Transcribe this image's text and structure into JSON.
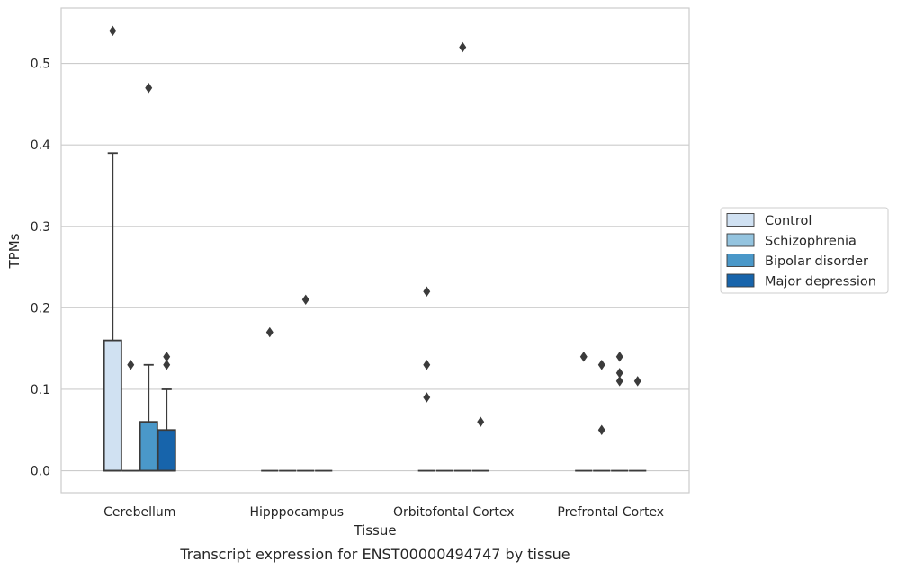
{
  "chart_data": {
    "type": "box",
    "caption": "Transcript expression for ENST00000494747 by tissue",
    "xlabel": "Tissue",
    "ylabel": "TPMs",
    "ylim": [
      -0.027,
      0.568
    ],
    "yticks": [
      0.0,
      0.1,
      0.2,
      0.3,
      0.4,
      0.5
    ],
    "ytick_labels": [
      "0.0",
      "0.1",
      "0.2",
      "0.3",
      "0.4",
      "0.5"
    ],
    "grid": "horizontal",
    "legend_position": "right",
    "categories": [
      "Cerebellum",
      "Hipppocampus",
      "Orbitofontal Cortex",
      "Prefrontal Cortex"
    ],
    "series": [
      {
        "name": "Control",
        "color": "#d0e1f2",
        "boxes": [
          {
            "q1": 0.0,
            "median": 0.0,
            "q3": 0.16,
            "whisker_low": 0.0,
            "whisker_high": 0.39,
            "outliers": [
              0.54
            ]
          },
          {
            "q1": 0.0,
            "median": 0.0,
            "q3": 0.0,
            "whisker_low": 0.0,
            "whisker_high": 0.0,
            "outliers": [
              0.17
            ]
          },
          {
            "q1": 0.0,
            "median": 0.0,
            "q3": 0.0,
            "whisker_low": 0.0,
            "whisker_high": 0.0,
            "outliers": [
              0.22,
              0.13,
              0.09
            ]
          },
          {
            "q1": 0.0,
            "median": 0.0,
            "q3": 0.0,
            "whisker_low": 0.0,
            "whisker_high": 0.0,
            "outliers": [
              0.14
            ]
          }
        ]
      },
      {
        "name": "Schizophrenia",
        "color": "#94c4df",
        "boxes": [
          {
            "q1": 0.0,
            "median": 0.0,
            "q3": 0.0,
            "whisker_low": 0.0,
            "whisker_high": 0.0,
            "outliers": [
              0.13
            ]
          },
          {
            "q1": 0.0,
            "median": 0.0,
            "q3": 0.0,
            "whisker_low": 0.0,
            "whisker_high": 0.0,
            "outliers": []
          },
          {
            "q1": 0.0,
            "median": 0.0,
            "q3": 0.0,
            "whisker_low": 0.0,
            "whisker_high": 0.0,
            "outliers": []
          },
          {
            "q1": 0.0,
            "median": 0.0,
            "q3": 0.0,
            "whisker_low": 0.0,
            "whisker_high": 0.0,
            "outliers": [
              0.13,
              0.05
            ]
          }
        ]
      },
      {
        "name": "Bipolar disorder",
        "color": "#4a98c9",
        "boxes": [
          {
            "q1": 0.0,
            "median": 0.0,
            "q3": 0.06,
            "whisker_low": 0.0,
            "whisker_high": 0.13,
            "outliers": [
              0.47
            ]
          },
          {
            "q1": 0.0,
            "median": 0.0,
            "q3": 0.0,
            "whisker_low": 0.0,
            "whisker_high": 0.0,
            "outliers": [
              0.21
            ]
          },
          {
            "q1": 0.0,
            "median": 0.0,
            "q3": 0.0,
            "whisker_low": 0.0,
            "whisker_high": 0.0,
            "outliers": [
              0.52
            ]
          },
          {
            "q1": 0.0,
            "median": 0.0,
            "q3": 0.0,
            "whisker_low": 0.0,
            "whisker_high": 0.0,
            "outliers": [
              0.14,
              0.12,
              0.11
            ]
          }
        ]
      },
      {
        "name": "Major depression",
        "color": "#1764ab",
        "boxes": [
          {
            "q1": 0.0,
            "median": 0.0,
            "q3": 0.05,
            "whisker_low": 0.0,
            "whisker_high": 0.1,
            "outliers": [
              0.14,
              0.13
            ]
          },
          {
            "q1": 0.0,
            "median": 0.0,
            "q3": 0.0,
            "whisker_low": 0.0,
            "whisker_high": 0.0,
            "outliers": []
          },
          {
            "q1": 0.0,
            "median": 0.0,
            "q3": 0.0,
            "whisker_low": 0.0,
            "whisker_high": 0.0,
            "outliers": [
              0.06
            ]
          },
          {
            "q1": 0.0,
            "median": 0.0,
            "q3": 0.0,
            "whisker_low": 0.0,
            "whisker_high": 0.0,
            "outliers": [
              0.11
            ]
          }
        ]
      }
    ]
  }
}
